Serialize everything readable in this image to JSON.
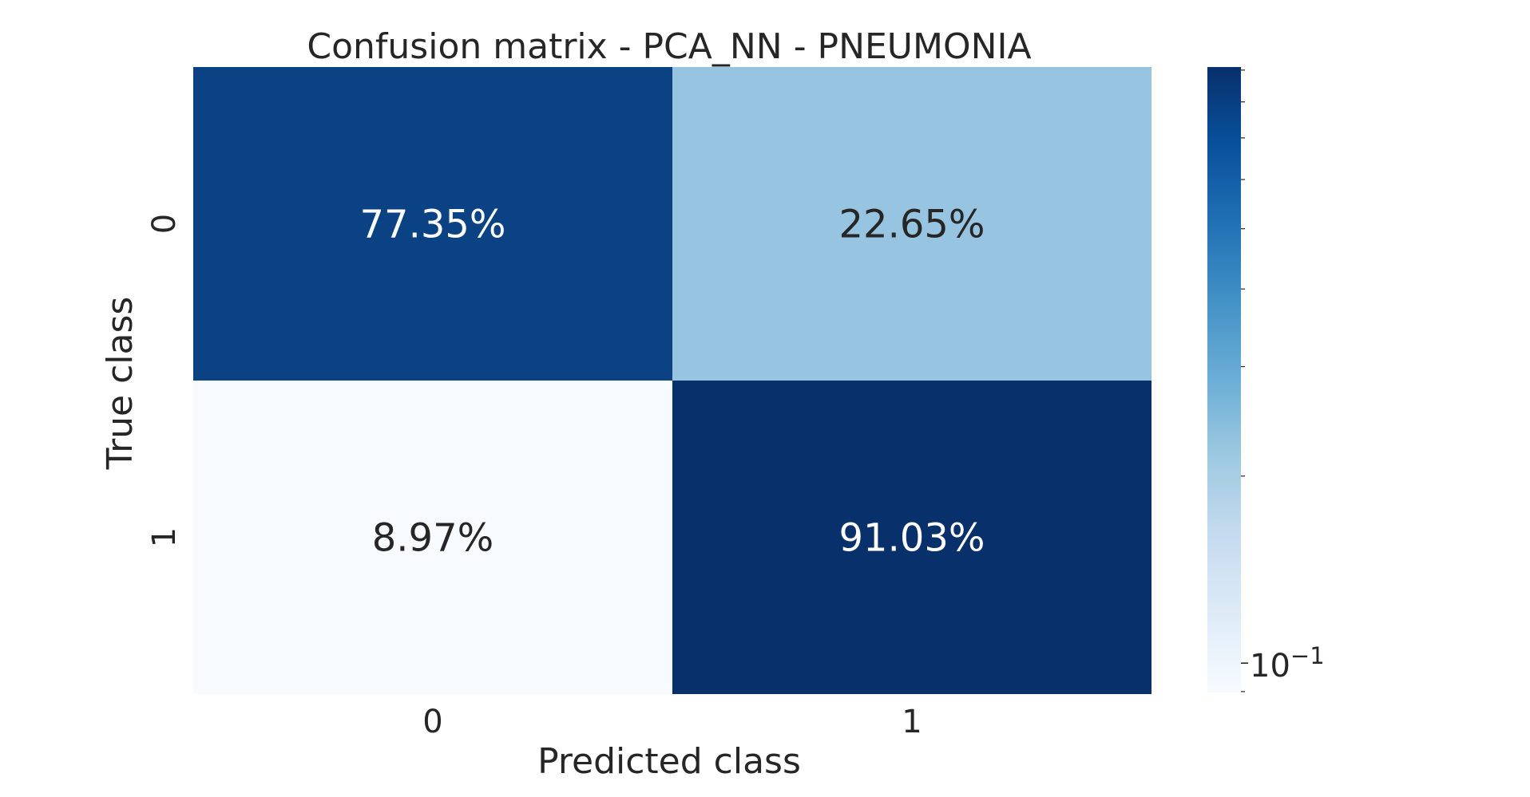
{
  "chart_data": {
    "type": "heatmap",
    "title": "Confusion matrix - PCA_NN - PNEUMONIA",
    "xlabel": "Predicted class",
    "ylabel": "True class",
    "x_categories": [
      "0",
      "1"
    ],
    "y_categories": [
      "0",
      "1"
    ],
    "values": [
      [
        0.7735,
        0.2265
      ],
      [
        0.0897,
        0.9103
      ]
    ],
    "cell_labels": [
      [
        "77.35%",
        "22.65%"
      ],
      [
        "8.97%",
        "91.03%"
      ]
    ],
    "colormap": "Blues",
    "color_scale": "log",
    "colorbar": {
      "min": 0.0897,
      "max": 0.9103,
      "tick_value": 0.1,
      "tick_base": "10",
      "tick_exponent": "−1"
    },
    "colors": {
      "cell_0_0": "#0a4284",
      "cell_0_1": "#97c4e0",
      "cell_1_0": "#f7fbff",
      "cell_1_1": "#08306b",
      "text_on_dark": "#ffffff",
      "text_on_light": "#262626"
    }
  }
}
